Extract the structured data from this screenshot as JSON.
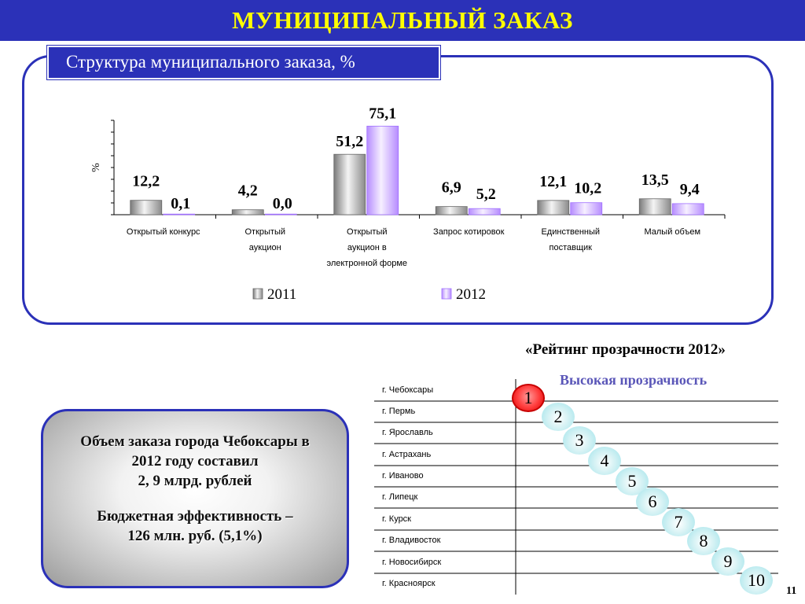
{
  "header": {
    "title": "МУНИЦИПАЛЬНЫЙ ЗАКАЗ"
  },
  "colors": {
    "brand_blue": "#2b31b8",
    "title_yellow": "#ffff00",
    "series_2011": "#b0b0b0",
    "series_2012": "#c9a6ff"
  },
  "chart_panel": {
    "title": "Структура муниципального заказа, %"
  },
  "chart_data": {
    "type": "bar",
    "title": "Структура муниципального заказа, %",
    "ylabel": "%",
    "xlabel": "",
    "ylim": [
      0,
      80
    ],
    "categories": [
      [
        "Открытый конкурс"
      ],
      [
        "Открытый",
        "аукцион"
      ],
      [
        "Открытый",
        "аукцион в",
        "электронной форме"
      ],
      [
        "Запрос котировок"
      ],
      [
        "Единственный",
        "поставщик"
      ],
      [
        "Малый объем"
      ]
    ],
    "series": [
      {
        "name": "2011",
        "values": [
          12.2,
          4.2,
          51.2,
          6.9,
          12.1,
          13.5
        ],
        "labels": [
          "12,2",
          "4,2",
          "51,2",
          "6,9",
          "12,1",
          "13,5"
        ]
      },
      {
        "name": "2012",
        "values": [
          0.1,
          0.0,
          75.1,
          5.2,
          10.2,
          9.4
        ],
        "labels": [
          "0,1",
          "0,0",
          "75,1",
          "5,2",
          "10,2",
          "9,4"
        ]
      }
    ],
    "legend_position": "bottom",
    "grid": false
  },
  "info_box": {
    "line1": "Объем заказа города Чебоксары в",
    "line2": "2012 году составил",
    "line3": "2, 9 млрд. рублей",
    "line4": "Бюджетная эффективность –",
    "line5": "126 млн. руб. (5,1%)"
  },
  "rating": {
    "title": "«Рейтинг прозрачности 2012»",
    "subtitle": "Высокая прозрачность",
    "cities": [
      "г. Чебоксары",
      "г. Пермь",
      "г. Ярославль",
      "г. Астрахань",
      "г. Иваново",
      "г. Липецк",
      "г. Курск",
      "г. Владивосток",
      "г. Новосибирск",
      "г. Красноярск"
    ],
    "ranks": [
      "1",
      "2",
      "3",
      "4",
      "5",
      "6",
      "7",
      "8",
      "9",
      "10"
    ]
  },
  "page_number": "11"
}
